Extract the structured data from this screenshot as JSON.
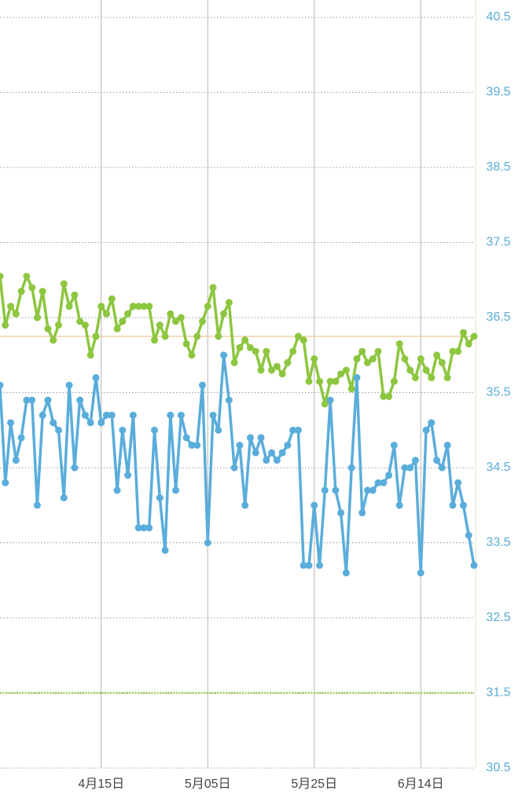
{
  "chart_data": {
    "type": "line",
    "categories": [
      null,
      null,
      null,
      null,
      null,
      null,
      null,
      null,
      null,
      null,
      null,
      null,
      null,
      null,
      null,
      null,
      null,
      null,
      null,
      "4月15日",
      null,
      null,
      null,
      null,
      null,
      null,
      null,
      null,
      null,
      null,
      null,
      null,
      null,
      null,
      null,
      null,
      null,
      null,
      null,
      "5月05日",
      null,
      null,
      null,
      null,
      null,
      null,
      null,
      null,
      null,
      null,
      null,
      null,
      null,
      null,
      null,
      null,
      null,
      null,
      null,
      "5月25日",
      null,
      null,
      null,
      null,
      null,
      null,
      null,
      null,
      null,
      null,
      null,
      null,
      null,
      null,
      null,
      null,
      null,
      null,
      null,
      "6月14日",
      null,
      null,
      null,
      null,
      null,
      null,
      null,
      null,
      null,
      null
    ],
    "series": [
      {
        "color": "#8dc63f",
        "values": [
          37.05,
          36.4,
          36.65,
          36.55,
          36.85,
          37.05,
          36.9,
          36.5,
          36.85,
          36.35,
          36.2,
          36.4,
          36.95,
          36.65,
          36.8,
          36.45,
          36.4,
          36.0,
          36.25,
          36.65,
          36.55,
          36.75,
          36.35,
          36.45,
          36.55,
          36.65,
          36.65,
          36.65,
          36.65,
          36.2,
          36.4,
          36.25,
          36.55,
          36.45,
          36.5,
          36.15,
          36.0,
          36.25,
          36.45,
          36.65,
          36.9,
          36.25,
          36.55,
          36.7,
          35.9,
          36.1,
          36.2,
          36.1,
          36.05,
          35.8,
          36.05,
          35.8,
          35.85,
          35.75,
          35.9,
          36.05,
          36.25,
          36.2,
          35.65,
          35.95,
          35.65,
          35.35,
          35.65,
          35.65,
          35.75,
          35.8,
          35.55,
          35.95,
          36.05,
          35.9,
          35.95,
          36.05,
          35.45,
          35.45,
          35.65,
          36.15,
          35.95,
          35.8,
          35.7,
          35.95,
          35.8,
          35.7,
          36.0,
          35.9,
          35.7,
          36.05,
          36.05,
          36.3,
          36.15,
          36.25
        ]
      },
      {
        "color": "#5aaddb",
        "values": [
          35.6,
          34.3,
          35.1,
          34.6,
          34.9,
          35.4,
          35.4,
          34.0,
          35.2,
          35.4,
          35.1,
          35.0,
          34.1,
          35.6,
          34.5,
          35.4,
          35.2,
          35.1,
          35.7,
          35.1,
          35.2,
          35.2,
          34.2,
          35.0,
          34.4,
          35.2,
          33.7,
          33.7,
          33.7,
          35.0,
          34.1,
          33.4,
          35.2,
          34.2,
          35.2,
          34.9,
          34.8,
          34.8,
          35.6,
          33.5,
          35.2,
          35.0,
          36.0,
          35.4,
          34.5,
          34.8,
          34.0,
          34.9,
          34.7,
          34.9,
          34.6,
          34.7,
          34.6,
          34.7,
          34.8,
          35.0,
          35.0,
          33.2,
          33.2,
          34.0,
          33.2,
          34.2,
          35.4,
          34.2,
          33.9,
          33.1,
          34.5,
          35.7,
          33.9,
          34.2,
          34.2,
          34.3,
          34.3,
          34.4,
          34.8,
          34.0,
          34.5,
          34.5,
          34.6,
          33.1,
          35.0,
          35.1,
          34.6,
          34.5,
          34.8,
          34.0,
          34.3,
          34.0,
          33.6,
          33.2
        ]
      }
    ],
    "ylim": [
      30.5,
      40.5
    ],
    "yticks": [
      30.5,
      31.5,
      32.5,
      33.5,
      34.5,
      35.5,
      36.5,
      37.5,
      38.5,
      39.5,
      40.5
    ],
    "grid": true,
    "reference_lines": [
      {
        "value": 36.25,
        "color": "#f3c596"
      },
      {
        "value": 31.5,
        "color": "#9ccc5a"
      }
    ]
  }
}
